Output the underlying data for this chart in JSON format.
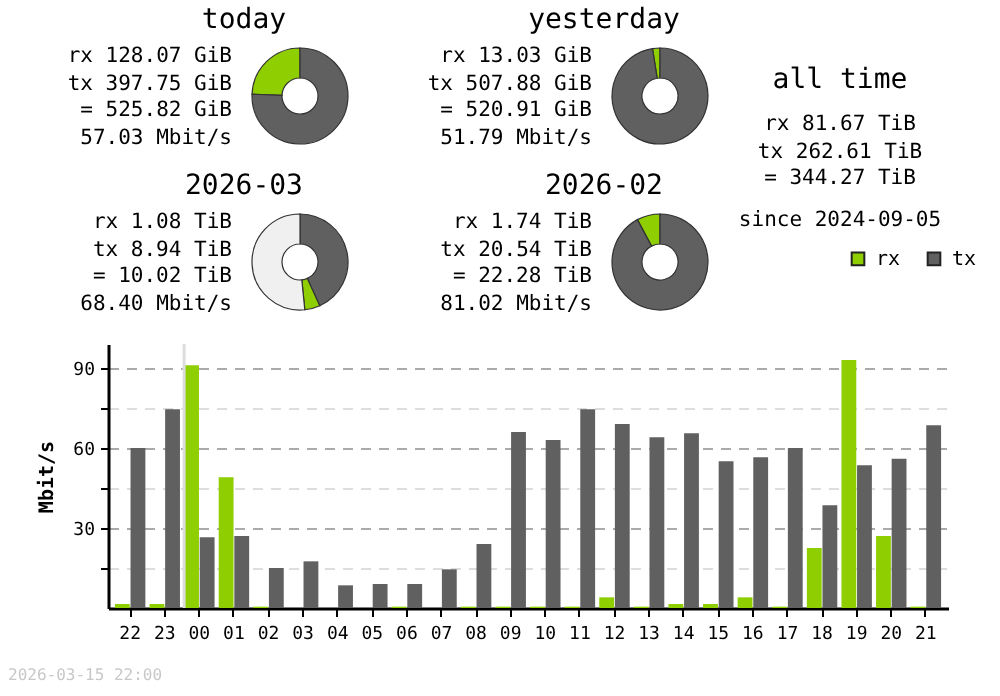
{
  "chart_data": [
    {
      "type": "donut",
      "title": "today",
      "categories": [
        null,
        null
      ],
      "values": [
        24.4,
        75.6
      ],
      "colors": [
        "#8fce00",
        "#606060"
      ],
      "annotations": [
        "rx 128.07 GiB",
        "tx 397.75 GiB",
        "= 525.82 GiB",
        "57.03 Mbit/s"
      ]
    },
    {
      "type": "donut",
      "title": "yesterday",
      "categories": [
        null,
        null
      ],
      "values": [
        2.5,
        97.5
      ],
      "colors": [
        "#8fce00",
        "#606060"
      ],
      "annotations": [
        "rx 13.03 GiB",
        "tx 507.88 GiB",
        "= 520.91 GiB",
        "51.79 Mbit/s"
      ]
    },
    {
      "type": "other",
      "title": "all time",
      "annotations": [
        "rx 81.67 TiB",
        "tx 262.61 TiB",
        "= 344.27 TiB",
        "since 2024-09-05"
      ]
    },
    {
      "type": "donut",
      "title": "2026-03",
      "categories": [
        null,
        null,
        null
      ],
      "values": [
        5.2,
        43.2,
        51.6
      ],
      "colors": [
        "#8fce00",
        "#606060",
        "#f0f0f0"
      ],
      "annotations": [
        "rx 1.08 TiB",
        "tx 8.94 TiB",
        "= 10.02 TiB",
        "68.40 Mbit/s"
      ]
    },
    {
      "type": "donut",
      "title": "2026-02",
      "categories": [
        null,
        null
      ],
      "values": [
        7.8,
        92.2
      ],
      "colors": [
        "#8fce00",
        "#606060"
      ],
      "annotations": [
        "rx 1.74 TiB",
        "tx 20.54 TiB",
        "= 22.28 TiB",
        "81.02 Mbit/s"
      ]
    },
    {
      "type": "bar",
      "ylabel": "Mbit/s",
      "categories": [
        "22",
        "23",
        "00",
        "01",
        "02",
        "03",
        "04",
        "05",
        "06",
        "07",
        "08",
        "09",
        "10",
        "11",
        "12",
        "13",
        "14",
        "15",
        "16",
        "17",
        "18",
        "19",
        "20",
        "21"
      ],
      "series": [
        {
          "name": "rx",
          "color": "#8fce00",
          "values": [
            1.5,
            1.5,
            91,
            49,
            0.5,
            0,
            0,
            0,
            0.5,
            0,
            0.5,
            0.5,
            0.5,
            0.5,
            4,
            0.5,
            1.5,
            1.5,
            4,
            0.5,
            22.5,
            93,
            27,
            0.5
          ]
        },
        {
          "name": "tx",
          "color": "#606060",
          "values": [
            60,
            74.5,
            26.5,
            27,
            15,
            17.5,
            8.5,
            9,
            9,
            14.5,
            24,
            66,
            63,
            74.5,
            69,
            64,
            65.5,
            55,
            56.5,
            60,
            38.5,
            53.5,
            56,
            68.5
          ]
        }
      ],
      "ylim": [
        0,
        99
      ],
      "yticks": [
        {
          "value": 15,
          "label": null
        },
        30,
        {
          "value": 45,
          "label": null
        },
        60,
        {
          "value": 75,
          "label": null
        },
        90
      ],
      "grid": "y",
      "legend": "top right",
      "ref_lines": [
        {
          "axis": "x",
          "value": "00",
          "color": "#dddddd"
        }
      ],
      "annotations": [
        "2026-03-15 22:00"
      ]
    }
  ]
}
